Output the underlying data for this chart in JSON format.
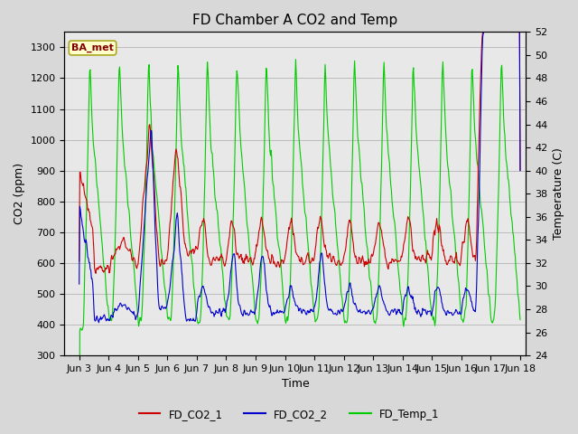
{
  "title": "FD Chamber A CO2 and Temp",
  "xlabel": "Time",
  "ylabel_left": "CO2 (ppm)",
  "ylabel_right": "Temperature (C)",
  "ylim_left": [
    300,
    1350
  ],
  "ylim_right": [
    24,
    52
  ],
  "yticks_left": [
    300,
    400,
    500,
    600,
    700,
    800,
    900,
    1000,
    1100,
    1200,
    1300
  ],
  "yticks_right": [
    24,
    26,
    28,
    30,
    32,
    34,
    36,
    38,
    40,
    42,
    44,
    46,
    48,
    50,
    52
  ],
  "xlim": [
    2.5,
    18.2
  ],
  "xtick_labels": [
    "Jun 3",
    "Jun 4",
    "Jun 5",
    "Jun 6",
    "Jun 7",
    "Jun 8",
    "Jun 9",
    "Jun 10",
    "Jun 11",
    "Jun 12",
    "Jun 13",
    "Jun 14",
    "Jun 15",
    "Jun 16",
    "Jun 17",
    "Jun 18"
  ],
  "xtick_positions": [
    3,
    4,
    5,
    6,
    7,
    8,
    9,
    10,
    11,
    12,
    13,
    14,
    15,
    16,
    17,
    18
  ],
  "color_co2_1": "#cc0000",
  "color_co2_2": "#0000cc",
  "color_temp": "#00cc00",
  "legend_labels": [
    "FD_CO2_1",
    "FD_CO2_2",
    "FD_Temp_1"
  ],
  "badge_text": "BA_met",
  "badge_facecolor": "#ffffcc",
  "badge_edgecolor": "#aaa820",
  "badge_textcolor": "#800000",
  "grid_color": "#bbbbbb",
  "bg_color": "#d8d8d8",
  "plot_bg_color": "#e8e8e8",
  "linewidth": 0.8,
  "title_fontsize": 11,
  "axis_fontsize": 9,
  "tick_fontsize": 8
}
